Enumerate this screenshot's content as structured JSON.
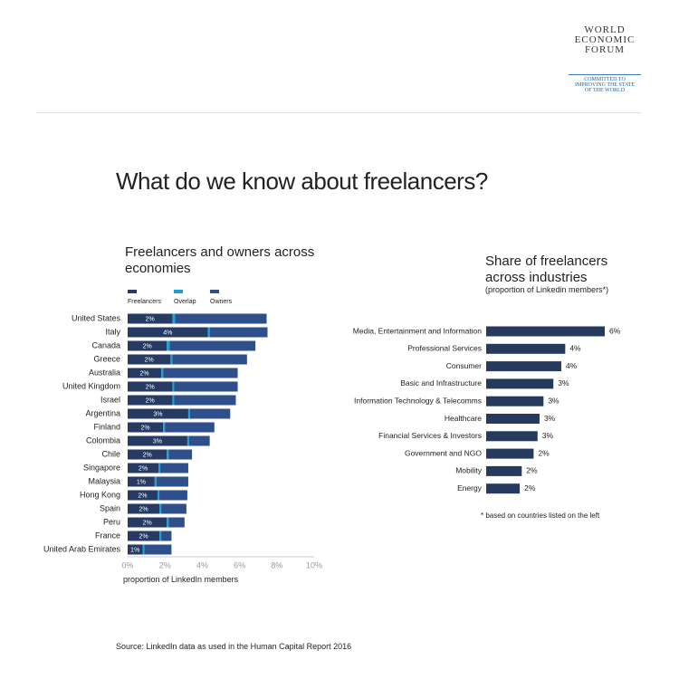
{
  "logo": {
    "name": [
      "WORLD",
      "ECONOMIC",
      "FORUM"
    ],
    "tagline": [
      "COMMITTED TO",
      "IMPROVING THE STATE",
      "OF THE WORLD"
    ]
  },
  "title": "What do we know about freelancers?",
  "source": "Source: LinkedIn data as used in the Human Capital Report 2016",
  "chart_data": [
    {
      "type": "stacked-barh",
      "title": "Freelancers and owners across economies",
      "x_label": "proportion of LinkedIn members",
      "categories": [
        "United States",
        "Italy",
        "Canada",
        "Greece",
        "Australia",
        "United Kingdom",
        "Israel",
        "Argentina",
        "Finland",
        "Colombia",
        "Chile",
        "Singapore",
        "Malaysia",
        "Hong Kong",
        "Spain",
        "Peru",
        "France",
        "United Arab Emirates"
      ],
      "series": [
        {
          "name": "Freelancers",
          "color": "#263a63",
          "values": [
            2.4,
            4.3,
            2.1,
            2.3,
            1.8,
            2.4,
            2.4,
            3.25,
            1.9,
            3.2,
            2.1,
            1.65,
            1.45,
            1.6,
            1.7,
            2.1,
            1.7,
            0.8
          ],
          "value_labels": [
            "2%",
            "4%",
            "2%",
            "2%",
            "2%",
            "2%",
            "2%",
            "3%",
            "2%",
            "3%",
            "2%",
            "2%",
            "1%",
            "2%",
            "2%",
            "2%",
            "2%",
            "1%"
          ]
        },
        {
          "name": "Overlap",
          "color": "#1e9fd6",
          "values": [
            0.15,
            0.1,
            0.15,
            0.1,
            0.1,
            0.1,
            0.1,
            0.1,
            0.1,
            0.1,
            0.1,
            0.1,
            0.1,
            0.1,
            0.1,
            0.1,
            0.1,
            0.1
          ]
        },
        {
          "name": "Owners",
          "color": "#2e4f8a",
          "values": [
            4.9,
            3.1,
            4.6,
            4.0,
            4.0,
            3.4,
            3.3,
            2.15,
            2.65,
            1.1,
            1.25,
            1.5,
            1.7,
            1.5,
            1.35,
            0.85,
            0.55,
            1.45
          ]
        }
      ],
      "xlim": [
        0,
        10
      ],
      "xticks": [
        {
          "value": 0,
          "label": "0%"
        },
        {
          "value": 2,
          "label": "2%"
        },
        {
          "value": 4,
          "label": "4%"
        },
        {
          "value": 6,
          "label": "6%"
        },
        {
          "value": 8,
          "label": "8%"
        },
        {
          "value": 10,
          "label": "10%"
        }
      ]
    },
    {
      "type": "barh",
      "title": "Share of freelancers across industries",
      "subtitle": "(proportion of Linkedin members*)",
      "note": "*  based on countries listed on the left",
      "color": "#263a5e",
      "categories": [
        "Media, Entertainment and Information",
        "Professional Services",
        "Consumer",
        "Basic and Infrastructure",
        "Information Technology & Telecomms",
        "Healthcare",
        "Financial Services & Investors",
        "Government and NGO",
        "Mobility",
        "Energy"
      ],
      "values": [
        6.0,
        4.0,
        3.8,
        3.4,
        2.9,
        2.7,
        2.6,
        2.4,
        1.8,
        1.7
      ],
      "value_labels": [
        "6%",
        "4%",
        "4%",
        "3%",
        "3%",
        "3%",
        "3%",
        "2%",
        "2%",
        "2%"
      ]
    }
  ]
}
